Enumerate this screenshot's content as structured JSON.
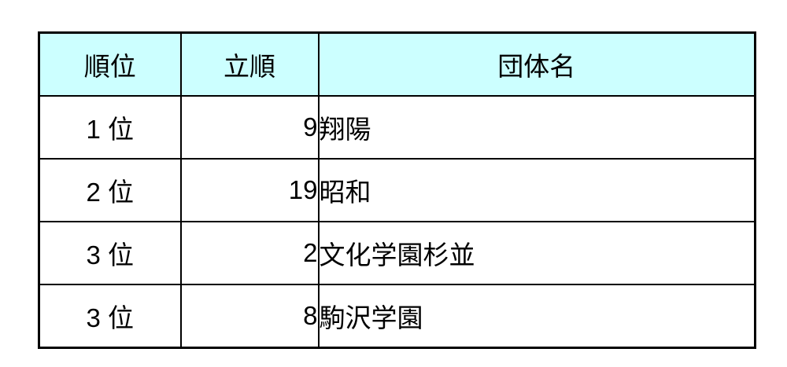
{
  "colors": {
    "header_bg": "#CCFFFF",
    "border": "#000000",
    "text": "#000000",
    "page_bg": "#FFFFFF"
  },
  "table": {
    "columns": [
      {
        "label": "順位"
      },
      {
        "label": "立順"
      },
      {
        "label": "団体名"
      }
    ],
    "rows": [
      {
        "rank": "1 位",
        "order": "9",
        "name": "翔陽"
      },
      {
        "rank": "2 位",
        "order": "19",
        "name": "昭和"
      },
      {
        "rank": "3 位",
        "order": "2",
        "name": "文化学園杉並"
      },
      {
        "rank": "3 位",
        "order": "8",
        "name": "駒沢学園"
      }
    ]
  },
  "chart_data": {
    "type": "table",
    "title": "",
    "categories": [
      "順位",
      "立順",
      "団体名"
    ],
    "values": [
      [
        "1 位",
        9,
        "翔陽"
      ],
      [
        "2 位",
        19,
        "昭和"
      ],
      [
        "3 位",
        2,
        "文化学園杉並"
      ],
      [
        "3 位",
        8,
        "駒沢学園"
      ]
    ]
  }
}
